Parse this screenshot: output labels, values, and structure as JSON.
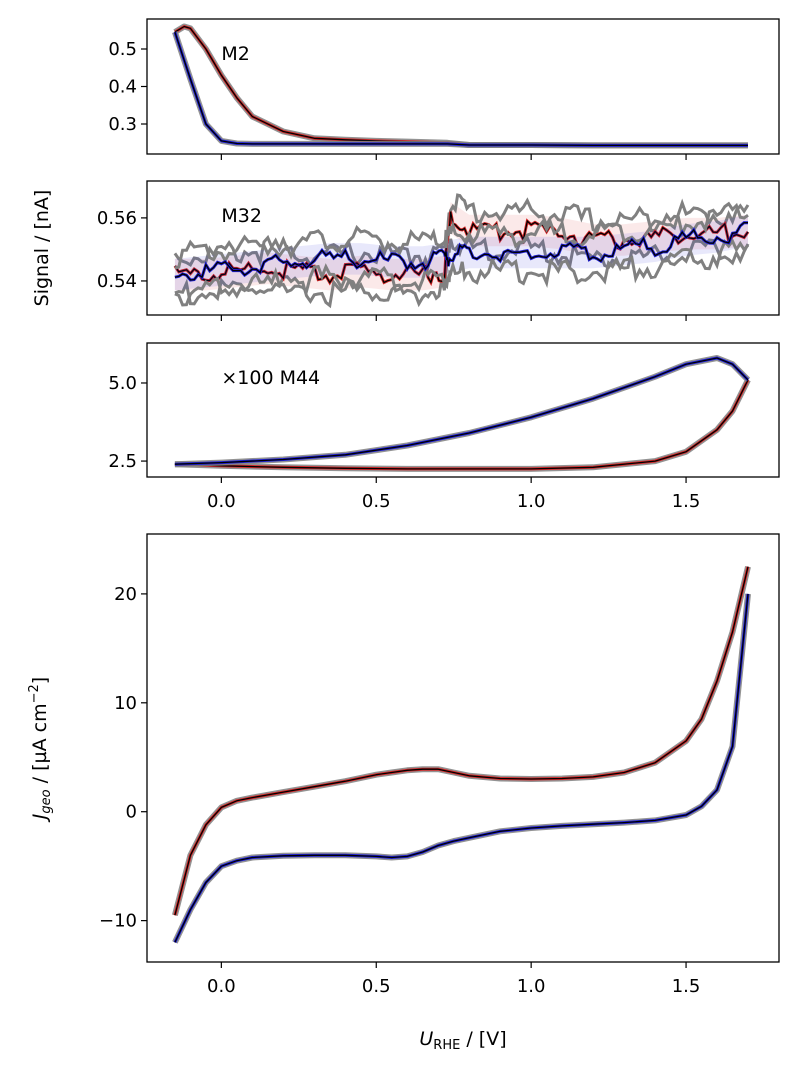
{
  "chart_data": [
    {
      "type": "line",
      "annotation": "M2",
      "ylabel_shared": "Signal / [nA]",
      "xlim": [
        -0.24,
        1.8
      ],
      "ylim": [
        0.22,
        0.58
      ],
      "yticks": [
        "0.3",
        "0.4",
        "0.5"
      ],
      "ytick_values": [
        0.3,
        0.4,
        0.5
      ],
      "x": [
        -0.15,
        -0.12,
        -0.1,
        -0.05,
        0,
        0.05,
        0.1,
        0.2,
        0.3,
        0.4,
        0.5,
        0.6,
        0.73,
        0.8,
        1.0,
        1.2,
        1.4,
        1.6,
        1.7
      ],
      "series": [
        {
          "color": "#d62728",
          "values": [
            0.545,
            0.56,
            0.555,
            0.5,
            0.43,
            0.37,
            0.32,
            0.28,
            0.262,
            0.258,
            0.255,
            0.253,
            0.25,
            0.244,
            0.244,
            0.243,
            0.243,
            0.243,
            0.243
          ]
        },
        {
          "color": "#1f1fd6",
          "values": [
            0.545,
            0.47,
            0.42,
            0.3,
            0.255,
            0.248,
            0.247,
            0.247,
            0.247,
            0.247,
            0.247,
            0.247,
            0.247,
            0.244,
            0.244,
            0.243,
            0.243,
            0.243,
            0.243
          ]
        }
      ]
    },
    {
      "type": "line",
      "annotation": "M32",
      "xlim": [
        -0.24,
        1.8
      ],
      "ylim": [
        0.5292,
        0.5717
      ],
      "yticks": [
        "0.54",
        "0.56"
      ],
      "ytick_values": [
        0.54,
        0.56
      ],
      "x": [
        -0.15,
        -0.05,
        0.05,
        0.15,
        0.25,
        0.35,
        0.45,
        0.55,
        0.65,
        0.72,
        0.74,
        0.8,
        0.9,
        1.0,
        1.1,
        1.2,
        1.3,
        1.4,
        1.5,
        1.6,
        1.7
      ],
      "series": [
        {
          "color": "#d62728",
          "values": [
            0.542,
            0.542,
            0.543,
            0.544,
            0.543,
            0.542,
            0.543,
            0.542,
            0.542,
            0.543,
            0.56,
            0.556,
            0.556,
            0.556,
            0.555,
            0.553,
            0.553,
            0.554,
            0.555,
            0.555,
            0.556
          ]
        },
        {
          "color": "#1f1fd6",
          "values": [
            0.542,
            0.543,
            0.544,
            0.545,
            0.546,
            0.547,
            0.547,
            0.546,
            0.546,
            0.547,
            0.548,
            0.549,
            0.549,
            0.549,
            0.549,
            0.549,
            0.55,
            0.551,
            0.553,
            0.554,
            0.556
          ]
        }
      ]
    },
    {
      "type": "line",
      "annotation": "×100 M44",
      "xlim": [
        -0.24,
        1.8
      ],
      "ylim": [
        1.99,
        6.28
      ],
      "yticks": [
        "2.5",
        "5.0"
      ],
      "ytick_values": [
        2.5,
        5.0
      ],
      "xticks": [
        "0.0",
        "0.5",
        "1.0",
        "1.5"
      ],
      "xtick_values": [
        0,
        0.5,
        1.0,
        1.5
      ],
      "x": [
        -0.15,
        0,
        0.2,
        0.4,
        0.6,
        0.8,
        1.0,
        1.2,
        1.4,
        1.5,
        1.6,
        1.65,
        1.7
      ],
      "series": [
        {
          "color": "#d62728",
          "values": [
            2.4,
            2.35,
            2.3,
            2.27,
            2.25,
            2.25,
            2.25,
            2.3,
            2.5,
            2.8,
            3.5,
            4.1,
            5.1
          ]
        },
        {
          "color": "#1f1fd6",
          "values": [
            2.4,
            2.45,
            2.55,
            2.7,
            3.0,
            3.4,
            3.9,
            4.5,
            5.2,
            5.6,
            5.8,
            5.6,
            5.1
          ]
        }
      ]
    },
    {
      "type": "line",
      "xlabel": "U",
      "xlabel_sub": "RHE",
      "xlabel_unit": " / [V]",
      "ylabel": "J",
      "ylabel_sub": "geo",
      "ylabel_unit": " / [µA cm",
      "ylabel_sup": "−2",
      "ylabel_end": "]",
      "xlim": [
        -0.24,
        1.8
      ],
      "ylim": [
        -13.8,
        25.5
      ],
      "yticks": [
        "−10",
        "0",
        "10",
        "20"
      ],
      "ytick_values": [
        -10,
        0,
        10,
        20
      ],
      "xticks": [
        "0.0",
        "0.5",
        "1.0",
        "1.5"
      ],
      "xtick_values": [
        0,
        0.5,
        1.0,
        1.5
      ],
      "x": [
        -0.15,
        -0.1,
        -0.05,
        0,
        0.05,
        0.1,
        0.2,
        0.3,
        0.4,
        0.5,
        0.55,
        0.6,
        0.65,
        0.7,
        0.75,
        0.8,
        0.9,
        1.0,
        1.1,
        1.2,
        1.3,
        1.4,
        1.5,
        1.55,
        1.6,
        1.65,
        1.7
      ],
      "series": [
        {
          "color": "#d62728",
          "values": [
            -9.5,
            -4,
            -1.2,
            0.4,
            1.0,
            1.3,
            1.8,
            2.3,
            2.8,
            3.4,
            3.6,
            3.8,
            3.9,
            3.9,
            3.6,
            3.3,
            3.05,
            3.0,
            3.05,
            3.2,
            3.6,
            4.5,
            6.5,
            8.5,
            12,
            16.5,
            22.5
          ]
        },
        {
          "color": "#1f1fd6",
          "values": [
            -12,
            -9,
            -6.5,
            -5.0,
            -4.5,
            -4.2,
            -4.05,
            -4.0,
            -4.0,
            -4.1,
            -4.2,
            -4.1,
            -3.7,
            -3.1,
            -2.7,
            -2.4,
            -1.8,
            -1.5,
            -1.3,
            -1.15,
            -1.0,
            -0.8,
            -0.3,
            0.5,
            2,
            6,
            20
          ]
        }
      ]
    }
  ]
}
